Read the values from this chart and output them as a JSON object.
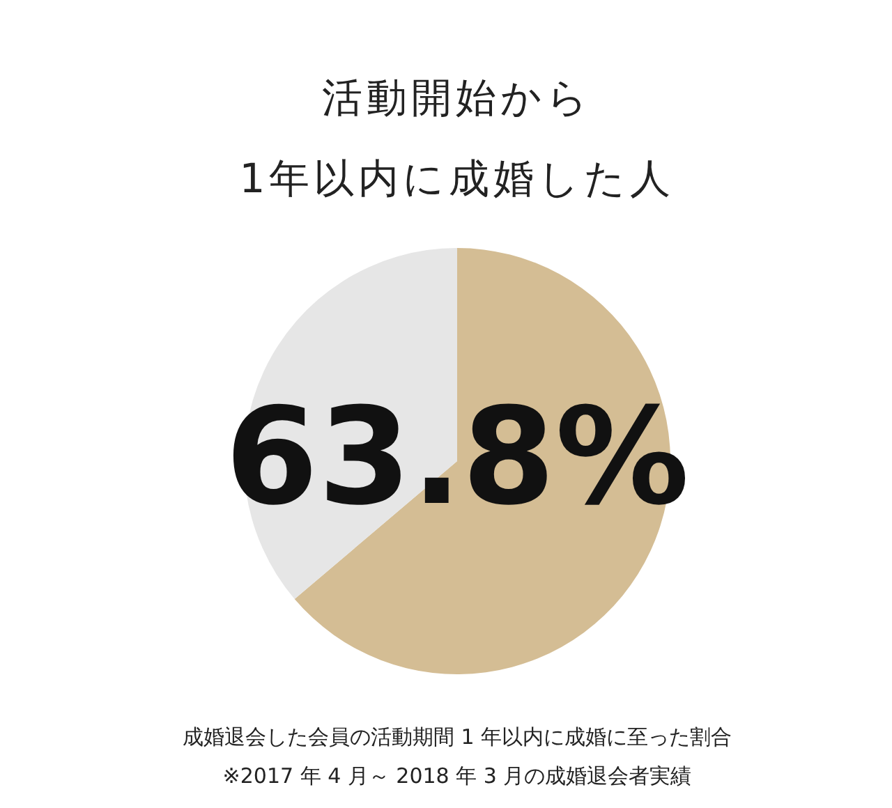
{
  "chart_data": {
    "type": "pie",
    "title": "活動開始から\n1年以内に成婚した人",
    "categories": [
      null,
      null
    ],
    "values": [
      63.8,
      36.2
    ],
    "colors": [
      "#d4bd94",
      "#e6e6e6"
    ],
    "value_labels": [
      "63.8%",
      null
    ],
    "annotations": [
      "成婚退会した会員の活動期間 1 年以内に成婚に至った割合",
      "※2017 年 4 月～ 2018 年 3 月の成婚退会者実績"
    ]
  }
}
